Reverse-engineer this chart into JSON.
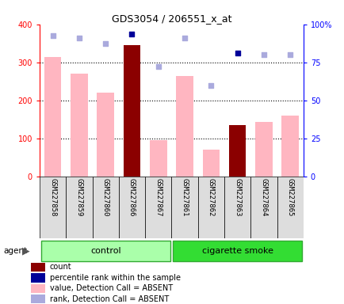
{
  "title": "GDS3054 / 206551_x_at",
  "samples": [
    "GSM227858",
    "GSM227859",
    "GSM227860",
    "GSM227866",
    "GSM227867",
    "GSM227861",
    "GSM227862",
    "GSM227863",
    "GSM227864",
    "GSM227865"
  ],
  "bar_values": [
    315,
    270,
    220,
    345,
    95,
    265,
    70,
    135,
    143,
    160
  ],
  "bar_is_dark": [
    false,
    false,
    false,
    true,
    false,
    false,
    false,
    true,
    false,
    false
  ],
  "rank_values": [
    92.5,
    91.25,
    87.5,
    93.75,
    72.5,
    91.25,
    59.5,
    81.25,
    80.0,
    80.0
  ],
  "rank_is_dark": [
    false,
    false,
    false,
    true,
    false,
    false,
    false,
    true,
    false,
    false
  ],
  "bar_color_light": "#FFB6C1",
  "bar_color_dark": "#8B0000",
  "rank_color_light": "#AAAADD",
  "rank_color_dark": "#000099",
  "ylim_left": [
    0,
    400
  ],
  "ylim_right": [
    0,
    100
  ],
  "yticks_left": [
    0,
    100,
    200,
    300,
    400
  ],
  "yticks_right": [
    0,
    25,
    50,
    75,
    100
  ],
  "ytick_labels_right": [
    "0",
    "25",
    "50",
    "75",
    "100%"
  ],
  "group_bg_light": "#AAFFAA",
  "group_bg_dark": "#33DD33",
  "group_border": "#33AA33",
  "n_control": 5,
  "n_smoke": 5,
  "legend_items": [
    {
      "label": "count",
      "color": "#8B0000"
    },
    {
      "label": "percentile rank within the sample",
      "color": "#000099"
    },
    {
      "label": "value, Detection Call = ABSENT",
      "color": "#FFB6C1"
    },
    {
      "label": "rank, Detection Call = ABSENT",
      "color": "#AAAADD"
    }
  ]
}
